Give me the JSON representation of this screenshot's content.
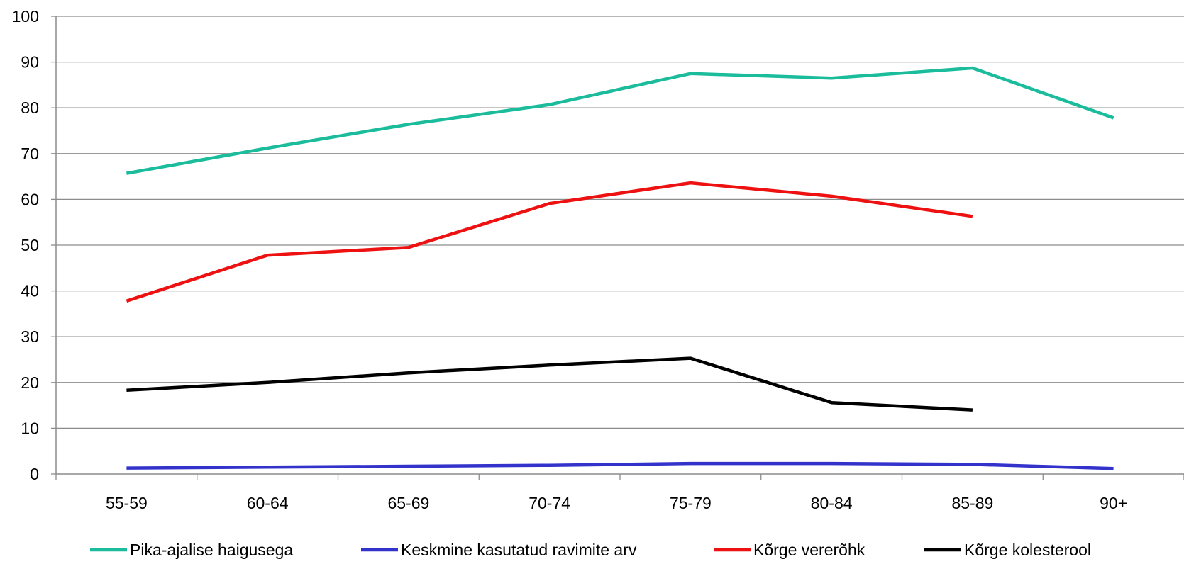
{
  "chart_data": {
    "type": "line",
    "title": "",
    "xlabel": "",
    "ylabel": "",
    "categories": [
      "55-59",
      "60-64",
      "65-69",
      "70-74",
      "75-79",
      "80-84",
      "85-89",
      "90+"
    ],
    "ylim": [
      0,
      100
    ],
    "yticks": [
      "0",
      "10",
      "20",
      "30",
      "40",
      "50",
      "60",
      "70",
      "80",
      "90",
      "100"
    ],
    "grid": true,
    "legend_position": "bottom",
    "series": [
      {
        "name": "Pika-ajalise haigusega",
        "color": "#1ABC9C",
        "values": [
          65.7,
          71.2,
          76.4,
          80.7,
          87.5,
          86.5,
          88.7,
          77.8
        ]
      },
      {
        "name": "Keskmine kasutatud ravimite arv",
        "color": "#3333CC",
        "values": [
          1.3,
          1.5,
          1.7,
          1.9,
          2.3,
          2.3,
          2.1,
          1.2
        ]
      },
      {
        "name": "Kõrge vererõhk",
        "color": "#EE1111",
        "values": [
          37.8,
          47.8,
          49.5,
          59.1,
          63.6,
          60.7,
          56.3,
          null
        ]
      },
      {
        "name": "Kõrge kolesterool",
        "color": "#000000",
        "values": [
          18.3,
          20.0,
          22.1,
          23.8,
          25.3,
          15.6,
          14.0,
          null
        ]
      }
    ]
  }
}
